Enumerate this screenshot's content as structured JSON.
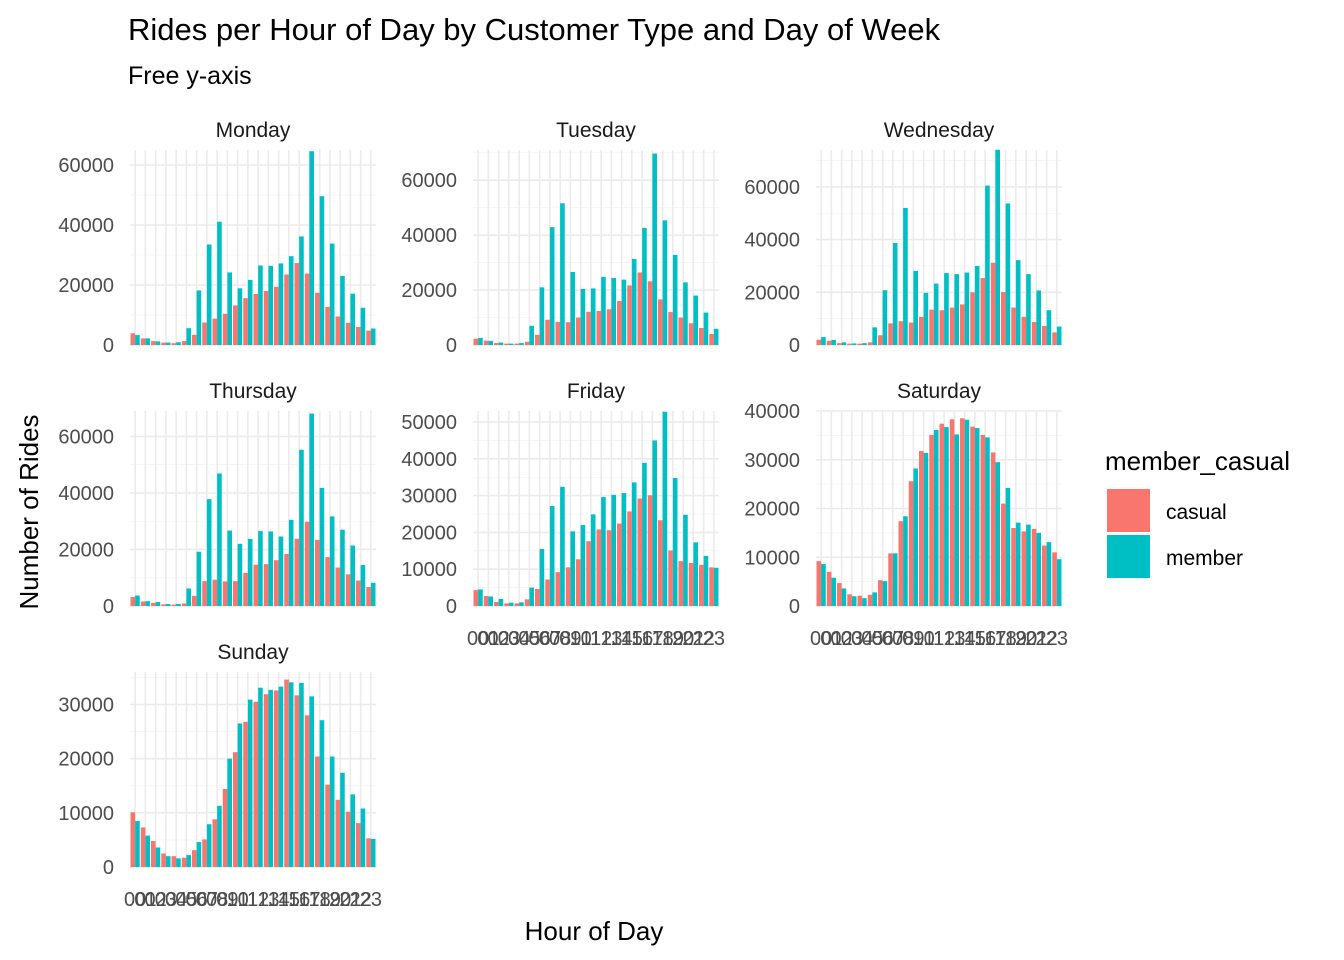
{
  "chart_data": {
    "type": "bar",
    "title": "Rides per Hour of Day by Customer Type and Day of Week",
    "subtitle": "Free y-axis",
    "xlabel": "Hour of Day",
    "ylabel": "Number of Rides",
    "legend": {
      "title": "member_casual",
      "placement": "right",
      "entries": [
        {
          "name": "casual",
          "color": "#F8766D"
        },
        {
          "name": "member",
          "color": "#00BFC4"
        }
      ]
    },
    "hours": [
      "00",
      "01",
      "02",
      "03",
      "04",
      "05",
      "06",
      "07",
      "08",
      "09",
      "10",
      "11",
      "12",
      "13",
      "14",
      "15",
      "16",
      "17",
      "18",
      "19",
      "20",
      "21",
      "22",
      "23"
    ],
    "panels": [
      {
        "name": "Monday",
        "ylim": [
          0,
          65000
        ],
        "yticks": [
          0,
          20000,
          40000,
          60000
        ],
        "show_x_labels": false,
        "casual": [
          3900,
          2200,
          1300,
          800,
          600,
          1300,
          3400,
          7500,
          8800,
          10400,
          13200,
          15600,
          17000,
          18000,
          19400,
          23500,
          27300,
          23800,
          17400,
          12700,
          9500,
          7400,
          6000,
          4800
        ],
        "member": [
          3300,
          2200,
          1200,
          800,
          900,
          5600,
          18200,
          33500,
          41100,
          24200,
          18900,
          21700,
          26500,
          26400,
          27200,
          29600,
          36200,
          64600,
          49600,
          33800,
          23000,
          17100,
          12400,
          5500
        ]
      },
      {
        "name": "Tuesday",
        "ylim": [
          0,
          71000
        ],
        "yticks": [
          0,
          20000,
          40000,
          60000
        ],
        "show_x_labels": false,
        "casual": [
          2300,
          1600,
          700,
          500,
          500,
          1200,
          3700,
          9200,
          8400,
          8300,
          10000,
          12100,
          12400,
          13000,
          16000,
          21700,
          26400,
          23200,
          16600,
          12000,
          10000,
          7900,
          6200,
          4000
        ],
        "member": [
          2600,
          1500,
          900,
          500,
          700,
          7000,
          21000,
          42900,
          51600,
          26600,
          20400,
          20600,
          24800,
          24400,
          23800,
          31300,
          42600,
          69700,
          45400,
          32800,
          22800,
          18000,
          11800,
          5900
        ]
      },
      {
        "name": "Wednesday",
        "ylim": [
          0,
          74000
        ],
        "yticks": [
          0,
          20000,
          40000,
          60000
        ],
        "show_x_labels": false,
        "casual": [
          2000,
          1600,
          700,
          500,
          500,
          1000,
          3700,
          8200,
          9000,
          8500,
          10700,
          13400,
          13200,
          14200,
          15400,
          20000,
          25400,
          31200,
          20100,
          14200,
          10700,
          8700,
          7200,
          4800
        ],
        "member": [
          3000,
          1900,
          1000,
          600,
          700,
          6700,
          20800,
          38700,
          52000,
          28100,
          19800,
          23300,
          27300,
          26900,
          27500,
          30000,
          60500,
          74100,
          53700,
          32200,
          26900,
          20700,
          13200,
          7000
        ]
      },
      {
        "name": "Thursday",
        "ylim": [
          0,
          69000
        ],
        "yticks": [
          0,
          20000,
          40000,
          60000
        ],
        "show_x_labels": false,
        "casual": [
          3200,
          1600,
          1100,
          600,
          500,
          900,
          3600,
          8800,
          9300,
          8700,
          8800,
          11700,
          14600,
          14800,
          16200,
          18400,
          23800,
          29800,
          23400,
          17300,
          13600,
          11200,
          9000,
          6700
        ],
        "member": [
          3700,
          1700,
          1400,
          700,
          700,
          6200,
          19200,
          37800,
          46900,
          26700,
          22000,
          23700,
          26500,
          26400,
          24600,
          30500,
          55300,
          68100,
          41800,
          31700,
          27000,
          21400,
          14500,
          8200
        ]
      },
      {
        "name": "Friday",
        "ylim": [
          0,
          53000
        ],
        "yticks": [
          0,
          10000,
          20000,
          30000,
          40000,
          50000
        ],
        "show_x_labels": true,
        "casual": [
          4300,
          2700,
          1100,
          700,
          700,
          1800,
          4600,
          7200,
          9200,
          10500,
          12700,
          17600,
          20800,
          20600,
          22400,
          25700,
          29200,
          30100,
          23300,
          15100,
          12200,
          11700,
          11200,
          10500
        ],
        "member": [
          4500,
          2600,
          1900,
          900,
          1000,
          5000,
          15500,
          27200,
          32400,
          20300,
          22000,
          24900,
          29600,
          30200,
          30700,
          33600,
          38900,
          45000,
          52800,
          34800,
          24800,
          17300,
          13600,
          10400
        ]
      },
      {
        "name": "Saturday",
        "ylim": [
          0,
          40000
        ],
        "yticks": [
          0,
          10000,
          20000,
          30000,
          40000
        ],
        "show_x_labels": true,
        "casual": [
          9200,
          7000,
          4700,
          2400,
          2100,
          2300,
          5300,
          10800,
          17400,
          25600,
          31800,
          35100,
          37400,
          38300,
          38500,
          36800,
          35100,
          31500,
          21000,
          16000,
          15300,
          15800,
          12400,
          11000
        ],
        "member": [
          8600,
          5800,
          3600,
          2000,
          1600,
          2800,
          5100,
          10800,
          18400,
          28200,
          31400,
          36100,
          36700,
          35200,
          38200,
          36500,
          34600,
          29500,
          24200,
          17100,
          16700,
          15000,
          13100,
          9600
        ]
      },
      {
        "name": "Sunday",
        "ylim": [
          0,
          36000
        ],
        "yticks": [
          0,
          10000,
          20000,
          30000
        ],
        "show_x_labels": true,
        "casual": [
          10100,
          7300,
          4800,
          2500,
          2000,
          1700,
          3100,
          5100,
          8800,
          14400,
          21200,
          26800,
          30500,
          31900,
          32600,
          34600,
          31700,
          28000,
          20400,
          15200,
          12400,
          10200,
          8100,
          5300
        ],
        "member": [
          8500,
          5800,
          3600,
          2000,
          1600,
          2200,
          4600,
          7900,
          11300,
          20000,
          26500,
          30900,
          33100,
          32700,
          33300,
          34100,
          34000,
          31500,
          27100,
          20400,
          17400,
          13400,
          10800,
          5200
        ]
      }
    ]
  }
}
